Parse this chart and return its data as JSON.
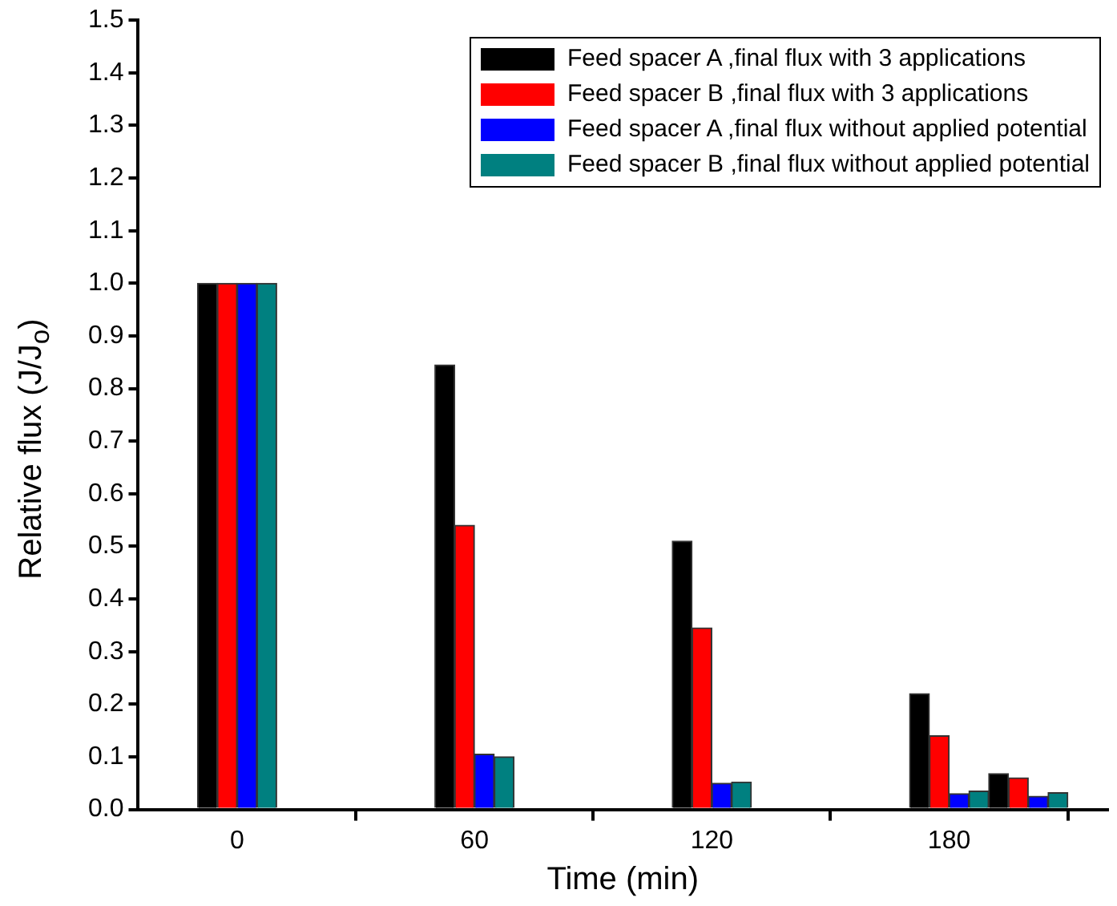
{
  "chart_data": {
    "type": "bar",
    "xlabel": "Time (min)",
    "ylabel": "Relative flux (J/J$_{o}$)",
    "x": [
      0,
      60,
      120,
      180,
      200
    ],
    "series": [
      {
        "name": "Feed spacer A ,final flux with 3 applications",
        "color": "#000000",
        "values": [
          1.0,
          0.845,
          0.51,
          0.22,
          0.068
        ]
      },
      {
        "name": "Feed spacer B ,final flux with 3 applications",
        "color": "#ff0000",
        "values": [
          1.0,
          0.54,
          0.345,
          0.14,
          0.06
        ]
      },
      {
        "name": "Feed spacer A ,final flux without applied potential",
        "color": "#0000ff",
        "values": [
          1.0,
          0.105,
          0.05,
          0.03,
          0.025
        ]
      },
      {
        "name": "Feed spacer B ,final flux without applied potential",
        "color": "#008080",
        "values": [
          1.0,
          0.1,
          0.052,
          0.035,
          0.032
        ]
      }
    ],
    "xlim": [
      -25,
      220
    ],
    "xticks": [
      0,
      60,
      120,
      180
    ],
    "ylim": [
      0,
      1.5
    ],
    "yticks": [
      {
        "value": 0,
        "label": "0.0"
      },
      0.1,
      0.2,
      0.3,
      0.4,
      0.5,
      0.6,
      0.7,
      0.8,
      0.9,
      {
        "value": 1,
        "label": "1.0"
      },
      1.1,
      1.2,
      1.3,
      1.4,
      1.5
    ],
    "grid": false,
    "legend": "top right"
  }
}
